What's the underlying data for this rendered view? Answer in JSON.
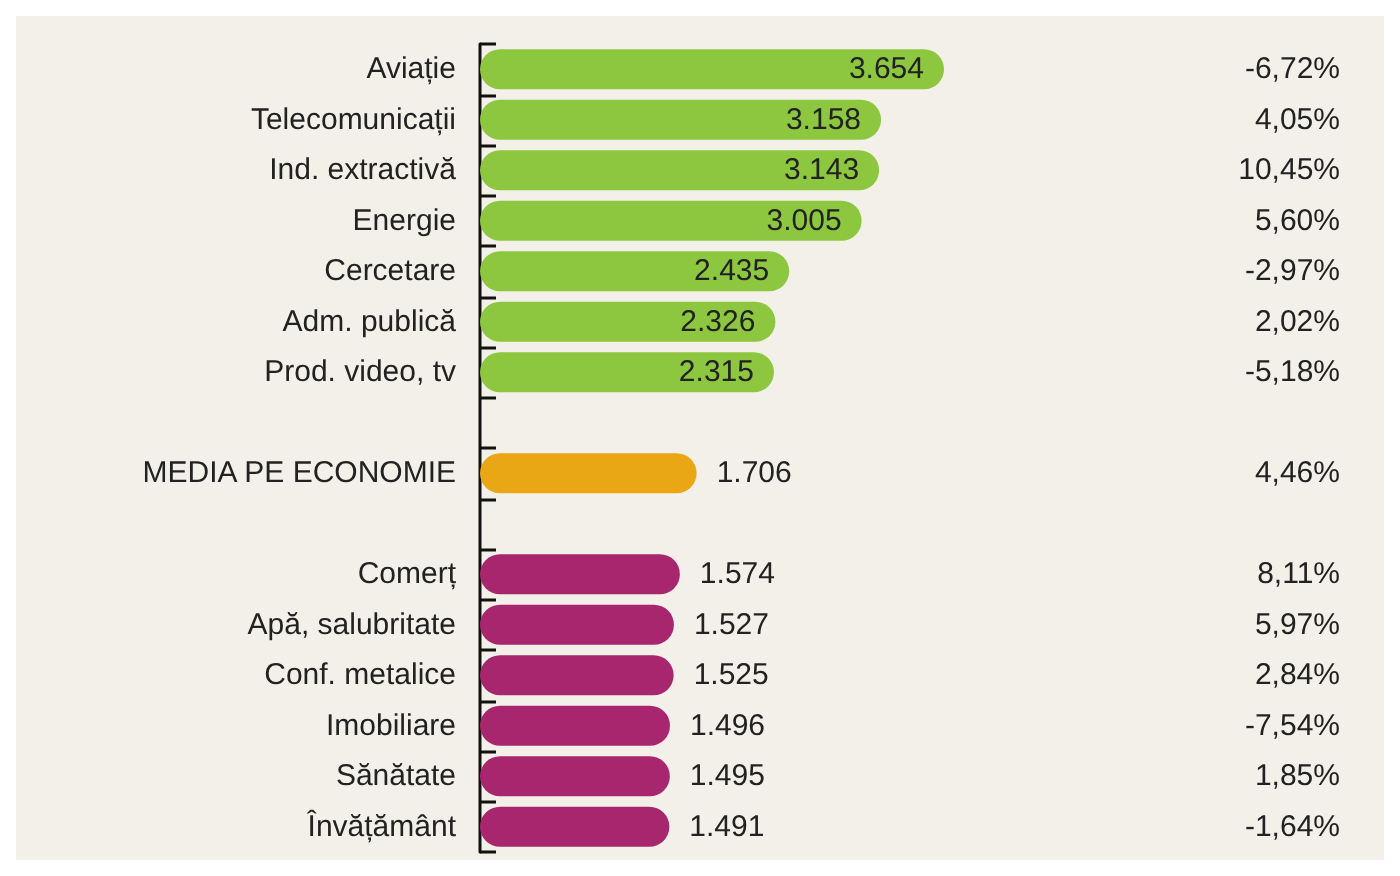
{
  "chart_data": {
    "type": "bar",
    "orientation": "horizontal",
    "categories": [
      "Aviație",
      "Telecomunicații",
      "Ind. extractivă",
      "Energie",
      "Cercetare",
      "Adm. publică",
      "Prod. video, tv",
      null,
      "MEDIA PE ECONOMIE",
      null,
      "Comerț",
      "Apă, salubritate",
      "Conf. metalice",
      "Imobiliare",
      "Sănătate",
      "Învățământ"
    ],
    "values": [
      3654,
      3158,
      3143,
      3005,
      2435,
      2326,
      2315,
      null,
      1706,
      null,
      1574,
      1527,
      1525,
      1496,
      1495,
      1491
    ],
    "colors": [
      "#8dc63f",
      "#8dc63f",
      "#8dc63f",
      "#8dc63f",
      "#8dc63f",
      "#8dc63f",
      "#8dc63f",
      null,
      "#e9a716",
      null,
      "#a8266e",
      "#a8266e",
      "#a8266e",
      "#a8266e",
      "#a8266e",
      "#a8266e"
    ],
    "value_labels": [
      "3.654",
      "3.158",
      "3.143",
      "3.005",
      "2.435",
      "2.326",
      "2.315",
      null,
      "1.706",
      null,
      "1.574",
      "1.527",
      "1.525",
      "1.496",
      "1.495",
      "1.491"
    ],
    "annotations": [
      "-6,72%",
      "4,05%",
      "10,45%",
      "5,60%",
      "-2,97%",
      "2,02%",
      "-5,18%",
      "4,46%",
      "8,11%",
      "5,97%",
      "2,84%",
      "-7,54%",
      "1,85%",
      "-1,64%"
    ],
    "grid": false
  }
}
